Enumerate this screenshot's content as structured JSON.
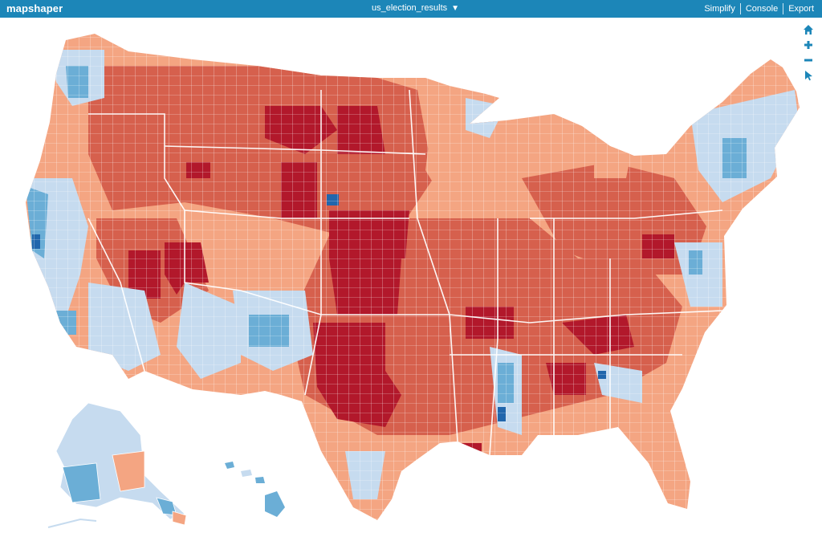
{
  "app": {
    "title": "mapshaper"
  },
  "layer": {
    "name": "us_election_results",
    "caret": "▼"
  },
  "menu": {
    "simplify": "Simplify",
    "console": "Console",
    "export": "Export"
  },
  "tools": [
    {
      "name": "home-icon",
      "label": "home"
    },
    {
      "name": "zoom-in-icon",
      "label": "zoom in"
    },
    {
      "name": "zoom-out-icon",
      "label": "zoom out"
    },
    {
      "name": "pointer-icon",
      "label": "pointer"
    }
  ],
  "colors": {
    "header": "#1c86b8",
    "red_strong": "#b2182b",
    "red_medium": "#d6604d",
    "red_light": "#f4a582",
    "blue_light": "#c6dbef",
    "blue_medium": "#6baed6",
    "blue_strong": "#2166ac",
    "boundary": "#ffffff"
  }
}
